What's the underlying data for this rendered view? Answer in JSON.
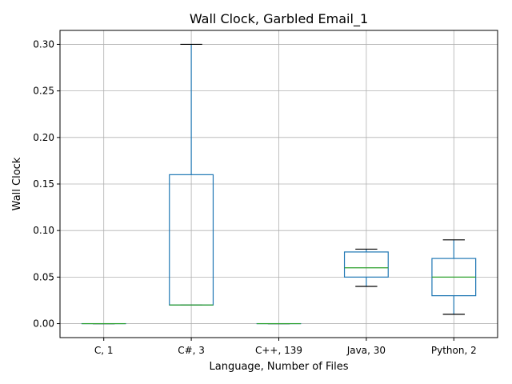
{
  "chart_data": {
    "type": "box",
    "title": "Wall Clock, Garbled Email_1",
    "xlabel": "Language, Number of Files",
    "ylabel": "Wall Clock",
    "ylim": [
      -0.015,
      0.315
    ],
    "yticks": [
      0.0,
      0.05,
      0.1,
      0.15,
      0.2,
      0.25,
      0.3
    ],
    "ytick_labels": [
      "0.00",
      "0.05",
      "0.10",
      "0.15",
      "0.20",
      "0.25",
      "0.30"
    ],
    "grid": true,
    "categories": [
      "C, 1",
      "C#, 3",
      "C++, 139",
      "Java, 30",
      "Python, 2"
    ],
    "boxes": [
      {
        "whisker_low": 0.0,
        "q1": 0.0,
        "median": 0.0,
        "q3": 0.0,
        "whisker_high": 0.0
      },
      {
        "whisker_low": 0.02,
        "q1": 0.02,
        "median": 0.02,
        "q3": 0.16,
        "whisker_high": 0.3
      },
      {
        "whisker_low": 0.0,
        "q1": 0.0,
        "median": 0.0,
        "q3": 0.0,
        "whisker_high": 0.0
      },
      {
        "whisker_low": 0.04,
        "q1": 0.05,
        "median": 0.06,
        "q3": 0.077,
        "whisker_high": 0.08
      },
      {
        "whisker_low": 0.01,
        "q1": 0.03,
        "median": 0.05,
        "q3": 0.07,
        "whisker_high": 0.09
      }
    ],
    "colors": {
      "box": "#1f77b4",
      "median": "#2ca02c",
      "whisker_cap": "#000000",
      "grid": "#b0b0b0",
      "axes": "#000000"
    }
  }
}
